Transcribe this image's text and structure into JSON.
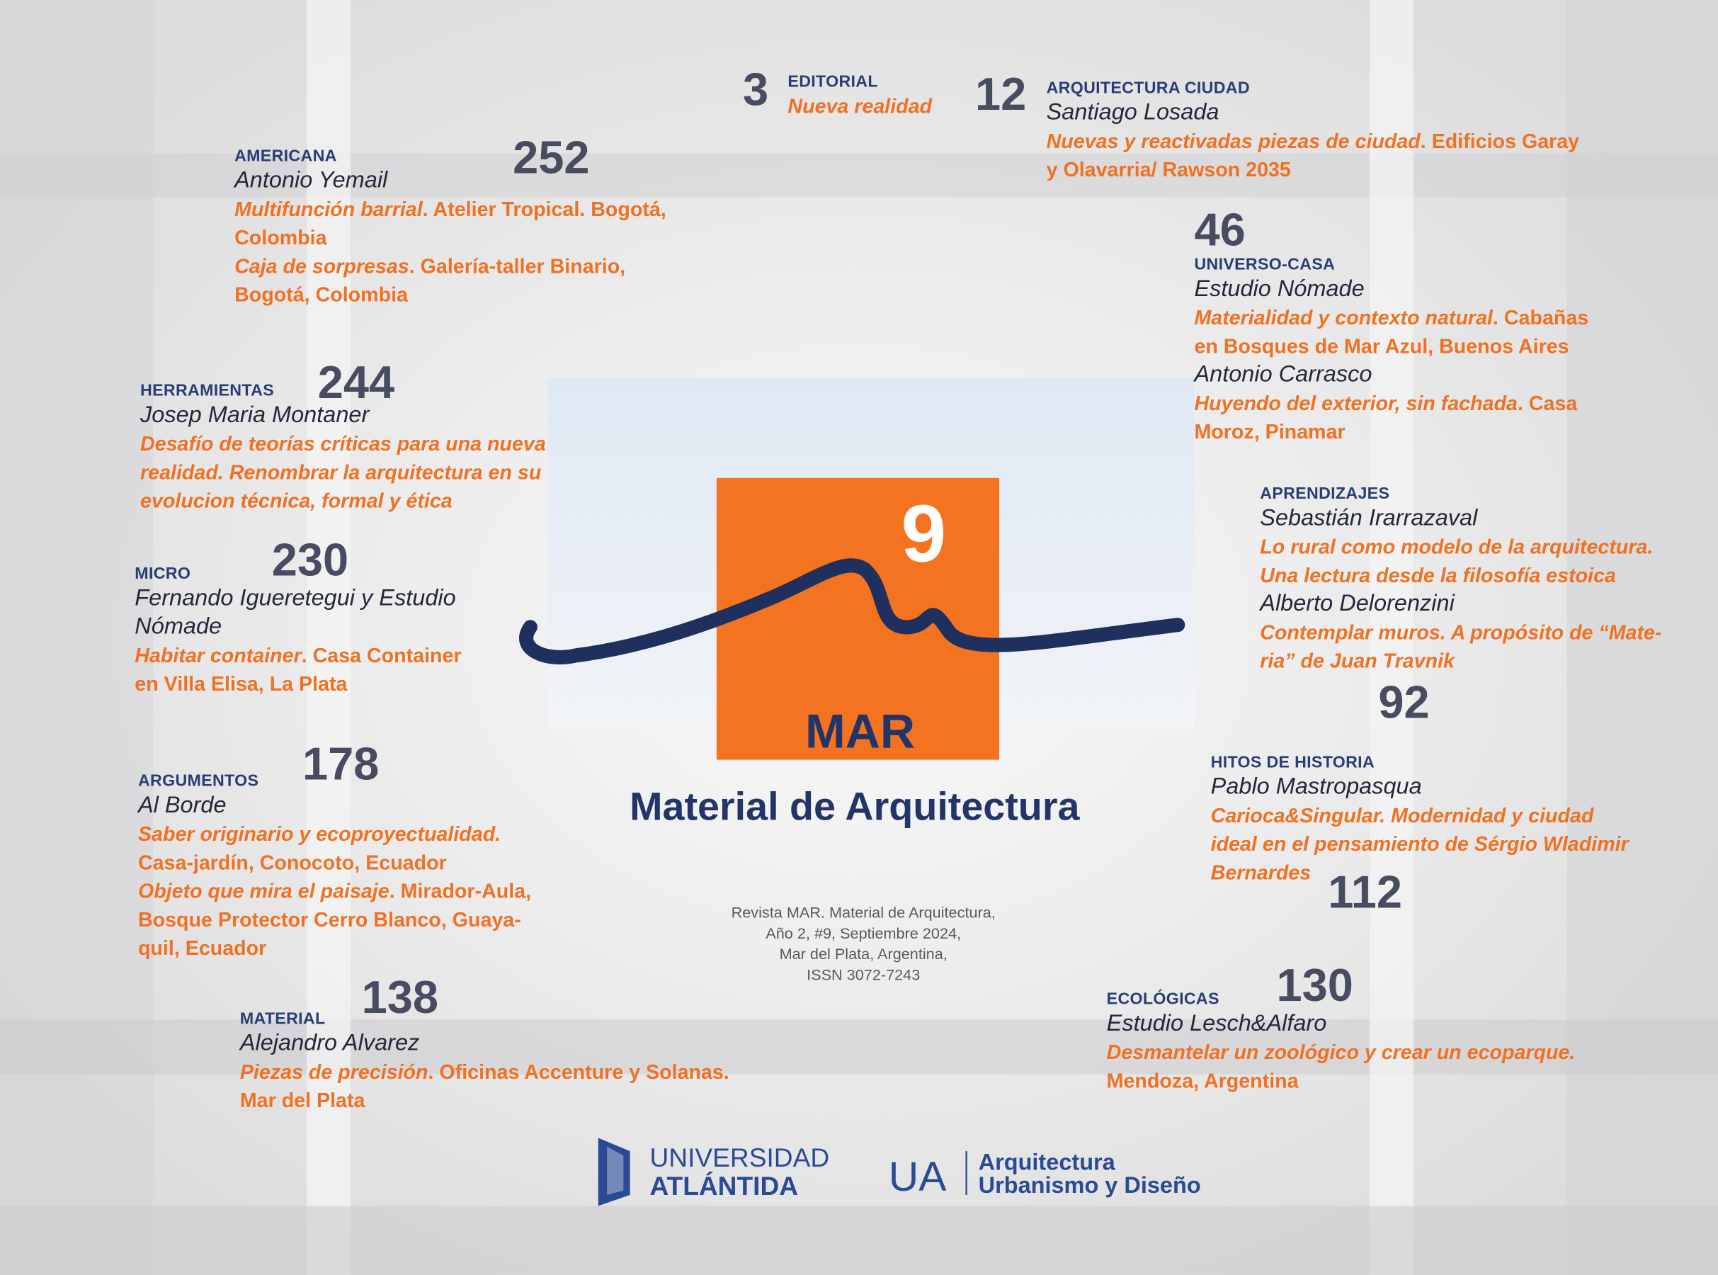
{
  "entries": [
    {
      "page": "3",
      "section": "EDITORIAL",
      "blocks": [
        {
          "titles": [
            {
              "italic": "Nueva realidad"
            }
          ]
        }
      ]
    },
    {
      "page": "12",
      "section": "ARQUITECTURA CIUDAD",
      "blocks": [
        {
          "author": "Santiago Losada",
          "titles": [
            {
              "italic": "Nuevas y reactivadas piezas de ciudad",
              "text": ". Edificios Garay y Olavarria/ Rawson 2035"
            }
          ]
        }
      ]
    },
    {
      "page": "252",
      "section": "AMERICANA",
      "blocks": [
        {
          "author": "Antonio Yemail",
          "titles": [
            {
              "italic": "Multifunción barrial",
              "text": ". Atelier Tropical. Bogotá, Colombia"
            },
            {
              "italic": "Caja de sorpresas",
              "text": ". Galería-taller Binario, Bogotá, Colombia"
            }
          ]
        }
      ]
    },
    {
      "page": "46",
      "section": "UNIVERSO-CASA",
      "blocks": [
        {
          "author": "Estudio Nómade",
          "titles": [
            {
              "italic": "Materialidad y contexto natural",
              "text": ". Cabañas en Bosques de Mar Azul, Buenos Aires"
            }
          ]
        },
        {
          "author": "Antonio Carrasco",
          "titles": [
            {
              "italic": "Huyendo del exterior, sin fachada",
              "text": ". Casa Moroz, Pinamar"
            }
          ]
        }
      ]
    },
    {
      "page": "244",
      "section": "HERRAMIENTAS",
      "blocks": [
        {
          "author": "Josep Maria Montaner",
          "titles": [
            {
              "italic": "Desafío de teorías críticas para una nueva realidad. Renombrar la arquitectura en su evolucion técnica, formal y ética"
            }
          ]
        }
      ]
    },
    {
      "page": "230",
      "section": "MICRO",
      "blocks": [
        {
          "author": "Fernando Igueretegui y Estudio Nómade",
          "titles": [
            {
              "italic": "Habitar container",
              "text": ". Casa Container en Villa Elisa, La Plata"
            }
          ]
        }
      ]
    },
    {
      "page": "92",
      "section": "APRENDIZAJES",
      "blocks": [
        {
          "author": "Sebastián Irarrazaval",
          "titles": [
            {
              "italic": "Lo rural como modelo de la arquitectura. Una lectura desde la filosofía estoica"
            }
          ]
        },
        {
          "author": "Alberto Delorenzini",
          "titles": [
            {
              "italic": "Contemplar muros. A propósito de “Mate-ria” de Juan Travnik"
            }
          ]
        }
      ]
    },
    {
      "page": "178",
      "section": "ARGUMENTOS",
      "blocks": [
        {
          "author": "Al Borde",
          "titles": [
            {
              "italic": "Saber originario y ecoproyectualidad."
            },
            {
              "text": "Casa-jardín, Conocoto, Ecuador"
            },
            {
              "italic": "Objeto que mira el paisaje",
              "text": ". Mirador-Aula, Bosque Protector Cerro Blanco, Guaya-quil, Ecuador"
            }
          ]
        }
      ]
    },
    {
      "page": "112",
      "section": "HITOS DE HISTORIA",
      "blocks": [
        {
          "author": "Pablo Mastropasqua",
          "titles": [
            {
              "italic": "Carioca&Singular. Modernidad y ciudad ideal en el pensamiento de Sérgio Wladimir Bernardes"
            }
          ]
        }
      ]
    },
    {
      "page": "138",
      "section": "MATERIAL",
      "blocks": [
        {
          "author": "Alejandro Alvarez",
          "titles": [
            {
              "italic": "Piezas de precisión",
              "text": ". Oficinas Accenture y Solanas. Mar del Plata"
            }
          ]
        }
      ]
    },
    {
      "page": "130",
      "section": "ECOLÓGICAS",
      "blocks": [
        {
          "author": "Estudio Lesch&Alfaro",
          "titles": [
            {
              "italic": "Desmantelar un zoológico y crear un ecoparque.",
              "text": " Mendoza, Argentina"
            }
          ]
        }
      ]
    }
  ],
  "center": {
    "number": "9",
    "brand": "MAR",
    "title": "Material de Arquitectura",
    "colophon": [
      "Revista MAR. Material de Arquitectura,",
      "Año 2, #9, Septiembre 2024,",
      "Mar del Plata, Argentina,",
      "ISSN 3072-7243"
    ]
  },
  "logos": {
    "university": [
      "UNIVERSIDAD",
      "ATLÁNTIDA"
    ],
    "faculty_abbr": "UA",
    "faculty": [
      "Arquitectura",
      "Urbanismo y Diseño"
    ]
  }
}
